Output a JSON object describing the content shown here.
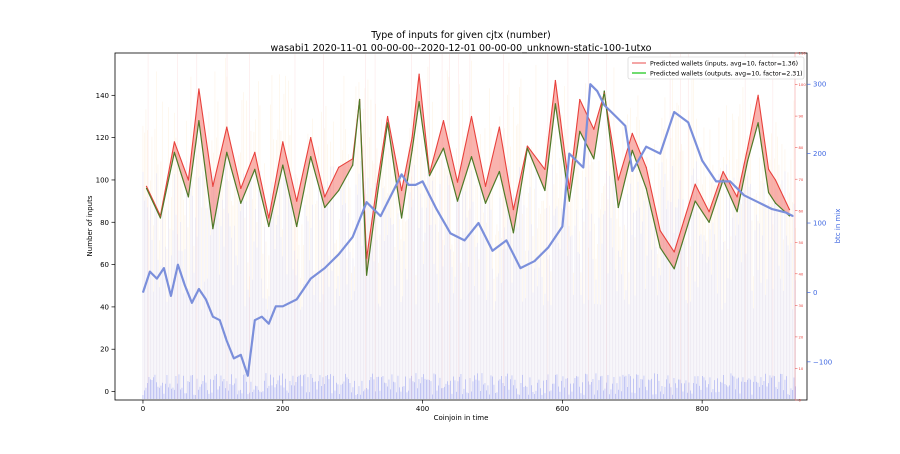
{
  "chart_data": {
    "type": "line",
    "title": "Type of inputs for given cjtx (number)",
    "subtitle": "wasabi1 2020-11-01 00-00-00--2020-12-01 00-00-00_unknown-static-100-1utxo",
    "xlabel": "Coinjoin in time",
    "ylabel": "Number of inputs",
    "y2label": "btc in mix",
    "xlim": [
      -40,
      950
    ],
    "ylim": [
      -4,
      160
    ],
    "y3lim": [
      0,
      110
    ],
    "y2lim": [
      -155,
      345
    ],
    "x_ticks": [
      0,
      200,
      400,
      600,
      800
    ],
    "y_ticks": [
      0,
      20,
      40,
      60,
      80,
      100,
      120,
      140
    ],
    "y2_ticks": [
      -100,
      0,
      100,
      200,
      300
    ],
    "y2_tick_labels": [
      "−100",
      "0",
      "100",
      "200",
      "300"
    ],
    "y3_ticks": [
      0,
      10,
      20,
      30,
      40,
      50,
      60,
      70,
      80,
      90,
      100,
      110
    ],
    "legend_position": "top-right",
    "legend": [
      {
        "label": "Predicted wallets (inputs, avg=10, factor=1.36)",
        "color": "#f08080"
      },
      {
        "label": "Predicted wallets (outputs, avg=10, factor=2.31)",
        "color": "#32cd32"
      }
    ],
    "series": [
      {
        "name": "Predicted wallets (inputs, avg=10, factor=1.36)",
        "axis": "left",
        "color": "#e8413c",
        "x": [
          5,
          25,
          45,
          65,
          80,
          100,
          120,
          140,
          160,
          180,
          200,
          220,
          240,
          260,
          280,
          300,
          310,
          320,
          335,
          350,
          370,
          385,
          395,
          410,
          430,
          450,
          470,
          490,
          510,
          530,
          550,
          575,
          590,
          610,
          625,
          645,
          660,
          680,
          700,
          720,
          740,
          760,
          790,
          810,
          830,
          850,
          865,
          880,
          895,
          905,
          925
        ],
        "y": [
          97,
          83,
          118,
          100,
          143,
          97,
          125,
          96,
          113,
          82,
          118,
          90,
          120,
          92,
          106,
          110,
          138,
          63,
          98,
          130,
          95,
          120,
          150,
          103,
          128,
          99,
          130,
          97,
          125,
          86,
          116,
          105,
          147,
          96,
          138,
          124,
          141,
          100,
          122,
          106,
          76,
          66,
          98,
          85,
          104,
          92,
          115,
          140,
          105,
          100,
          86
        ]
      },
      {
        "name": "Predicted wallets (outputs, avg=10, factor=2.31)",
        "axis": "left",
        "color": "#4f7a28",
        "x": [
          5,
          25,
          45,
          65,
          80,
          100,
          120,
          140,
          160,
          180,
          200,
          220,
          240,
          260,
          280,
          300,
          310,
          320,
          335,
          350,
          370,
          385,
          395,
          410,
          430,
          450,
          470,
          490,
          510,
          530,
          550,
          575,
          590,
          610,
          625,
          645,
          660,
          680,
          700,
          720,
          740,
          760,
          790,
          810,
          830,
          850,
          865,
          880,
          895,
          905,
          925
        ],
        "y": [
          96,
          82,
          113,
          92,
          128,
          77,
          113,
          89,
          105,
          78,
          107,
          78,
          111,
          87,
          95,
          107,
          138,
          55,
          92,
          127,
          82,
          114,
          137,
          102,
          115,
          90,
          111,
          89,
          104,
          75,
          115,
          95,
          136,
          90,
          123,
          110,
          142,
          87,
          114,
          96,
          68,
          58,
          90,
          80,
          100,
          85,
          109,
          127,
          94,
          89,
          83
        ]
      },
      {
        "name": "btc in mix",
        "axis": "right",
        "color": "#7b8fdb",
        "x": [
          0,
          10,
          20,
          30,
          40,
          50,
          60,
          70,
          80,
          90,
          100,
          110,
          120,
          130,
          140,
          150,
          160,
          170,
          180,
          190,
          200,
          220,
          240,
          260,
          280,
          300,
          320,
          340,
          360,
          370,
          380,
          390,
          400,
          410,
          420,
          440,
          460,
          480,
          500,
          520,
          540,
          560,
          580,
          600,
          610,
          620,
          630,
          640,
          650,
          660,
          670,
          680,
          690,
          700,
          720,
          740,
          760,
          780,
          800,
          820,
          840,
          860,
          880,
          900,
          920,
          930
        ],
        "y": [
          0,
          30,
          20,
          35,
          -5,
          40,
          10,
          -15,
          5,
          -10,
          -35,
          -40,
          -70,
          -95,
          -90,
          -120,
          -40,
          -35,
          -45,
          -20,
          -20,
          -10,
          20,
          35,
          55,
          80,
          130,
          110,
          150,
          170,
          155,
          155,
          160,
          140,
          120,
          85,
          75,
          100,
          60,
          75,
          35,
          45,
          65,
          95,
          200,
          190,
          180,
          300,
          290,
          270,
          260,
          250,
          240,
          175,
          210,
          200,
          260,
          245,
          190,
          160,
          160,
          140,
          130,
          120,
          115,
          110
        ]
      }
    ]
  }
}
